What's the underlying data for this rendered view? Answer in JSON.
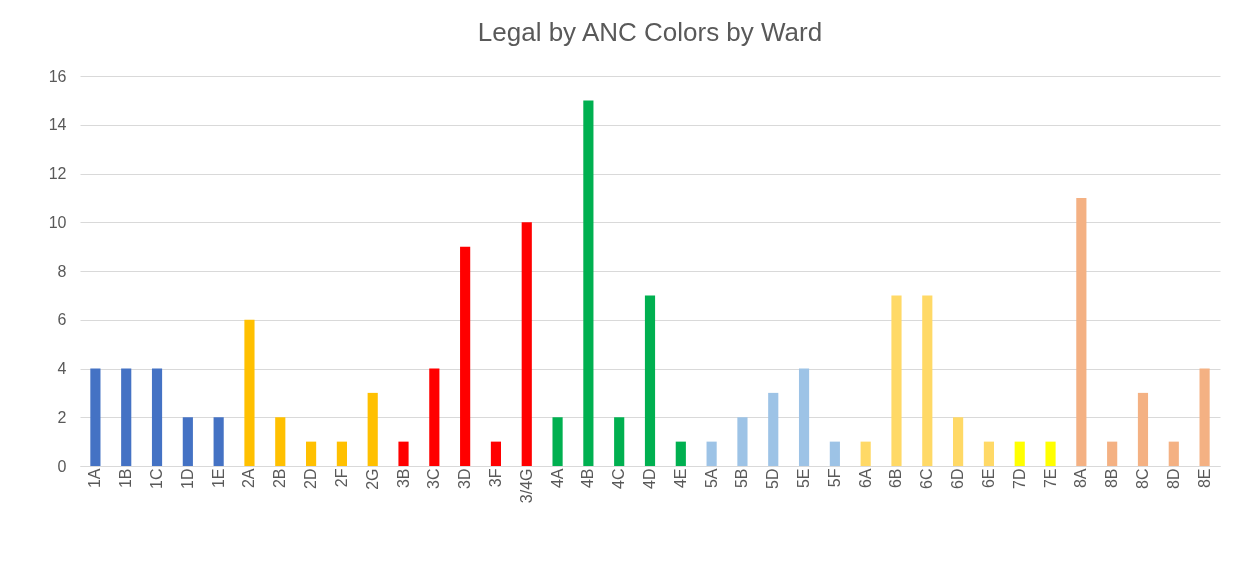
{
  "chart_data": {
    "type": "bar",
    "title": "Legal by ANC Colors by Ward",
    "categories": [
      "1A",
      "1B",
      "1C",
      "1D",
      "1E",
      "2A",
      "2B",
      "2D",
      "2F",
      "2G",
      "3B",
      "3C",
      "3D",
      "3F",
      "3/4G",
      "4A",
      "4B",
      "4C",
      "4D",
      "4E",
      "5A",
      "5B",
      "5D",
      "5E",
      "5F",
      "6A",
      "6B",
      "6C",
      "6D",
      "6E",
      "7D",
      "7E",
      "8A",
      "8B",
      "8C",
      "8D",
      "8E"
    ],
    "values": [
      4,
      4,
      4,
      2,
      2,
      6,
      2,
      1,
      1,
      3,
      1,
      4,
      9,
      1,
      10,
      2,
      15,
      2,
      7,
      1,
      1,
      2,
      3,
      4,
      1,
      1,
      7,
      7,
      2,
      1,
      1,
      1,
      11,
      1,
      3,
      1,
      4
    ],
    "colors": [
      "#4472c4",
      "#4472c4",
      "#4472c4",
      "#4472c4",
      "#4472c4",
      "#ffc000",
      "#ffc000",
      "#ffc000",
      "#ffc000",
      "#ffc000",
      "#ff0000",
      "#ff0000",
      "#ff0000",
      "#ff0000",
      "#ff0000",
      "#00b050",
      "#00b050",
      "#00b050",
      "#00b050",
      "#00b050",
      "#9dc3e6",
      "#9dc3e6",
      "#9dc3e6",
      "#9dc3e6",
      "#9dc3e6",
      "#ffd966",
      "#ffd966",
      "#ffd966",
      "#ffd966",
      "#ffd966",
      "#ffff00",
      "#ffff00",
      "#f4b183",
      "#f4b183",
      "#f4b183",
      "#f4b183",
      "#f4b183"
    ],
    "ylim": [
      0,
      16
    ],
    "yticks": [
      0,
      2,
      4,
      6,
      8,
      10,
      12,
      14,
      16
    ],
    "grid": "y"
  }
}
